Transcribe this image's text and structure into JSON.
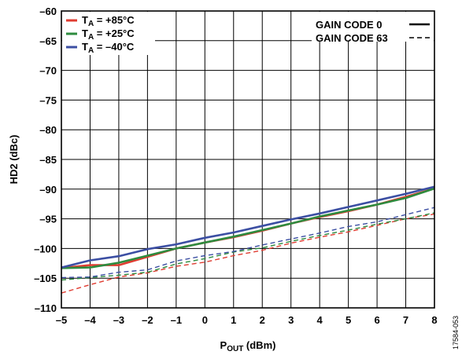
{
  "chart_data": {
    "type": "line",
    "xlabel": "P",
    "xlabel_sub": "OUT",
    "xlabel_unit": " (dBm)",
    "ylabel": "HD2 (dBc)",
    "xlim": [
      -5,
      8
    ],
    "ylim": [
      -110,
      -60
    ],
    "xticks": [
      -5,
      -4,
      -3,
      -2,
      -1,
      0,
      1,
      2,
      3,
      4,
      5,
      6,
      7,
      8
    ],
    "yticks": [
      -110,
      -105,
      -100,
      -95,
      -90,
      -85,
      -80,
      -75,
      -70,
      -65,
      -60
    ],
    "grid": true,
    "x": [
      -5,
      -4,
      -3,
      -2,
      -1,
      0,
      1,
      2,
      3,
      4,
      5,
      6,
      7,
      8
    ],
    "series": [
      {
        "temp": "+85°C",
        "gain_code": "0",
        "color": "#e03c31",
        "dash": "solid",
        "values": [
          -103.3,
          -102.8,
          -102.8,
          -101.4,
          -100.0,
          -99.0,
          -98.1,
          -97.0,
          -95.8,
          -94.7,
          -93.7,
          -92.6,
          -91.3,
          -89.9
        ]
      },
      {
        "temp": "+25°C",
        "gain_code": "0",
        "color": "#2e8b3e",
        "dash": "solid",
        "values": [
          -103.3,
          -103.2,
          -102.4,
          -101.2,
          -100.0,
          -99.0,
          -98.0,
          -96.9,
          -95.8,
          -94.6,
          -93.6,
          -92.6,
          -91.5,
          -89.9
        ]
      },
      {
        "temp": "-40°C",
        "gain_code": "0",
        "color": "#3c4fa3",
        "dash": "solid",
        "values": [
          -103.2,
          -102.0,
          -101.3,
          -100.1,
          -99.3,
          -98.2,
          -97.3,
          -96.2,
          -95.1,
          -94.1,
          -93.0,
          -91.9,
          -90.8,
          -89.6
        ]
      },
      {
        "temp": "+85°C",
        "gain_code": "63",
        "color": "#e03c31",
        "dash": "dashed",
        "values": [
          -107.5,
          -106.1,
          -104.8,
          -104.1,
          -103.0,
          -102.3,
          -101.2,
          -100.3,
          -99.1,
          -98.1,
          -97.2,
          -96.1,
          -95.0,
          -94.2
        ]
      },
      {
        "temp": "+25°C",
        "gain_code": "63",
        "color": "#2e8b3e",
        "dash": "dashed",
        "values": [
          -105.3,
          -104.9,
          -104.5,
          -104.0,
          -102.6,
          -101.7,
          -100.6,
          -99.9,
          -98.8,
          -97.8,
          -96.9,
          -95.9,
          -95.0,
          -94.0
        ]
      },
      {
        "temp": "-40°C",
        "gain_code": "63",
        "color": "#3c4fa3",
        "dash": "dashed",
        "values": [
          -104.9,
          -104.8,
          -104.0,
          -103.6,
          -102.1,
          -101.2,
          -100.5,
          -99.4,
          -98.4,
          -97.4,
          -96.3,
          -95.5,
          -94.3,
          -93.1
        ]
      }
    ],
    "legend_temp": {
      "placement": "top-left",
      "entries": [
        {
          "prefix": "T",
          "sub": "A",
          "text": " = +85°C",
          "color": "#e03c31"
        },
        {
          "prefix": "T",
          "sub": "A",
          "text": " = +25°C",
          "color": "#2e8b3e"
        },
        {
          "prefix": "T",
          "sub": "A",
          "text": " = –40°C",
          "color": "#3c4fa3"
        }
      ]
    },
    "legend_gain": {
      "placement": "top-right",
      "entries": [
        {
          "label": "GAIN CODE 0",
          "dash": "solid"
        },
        {
          "label": "GAIN CODE 63",
          "dash": "dashed"
        }
      ]
    },
    "figure_id": "17584-053"
  }
}
